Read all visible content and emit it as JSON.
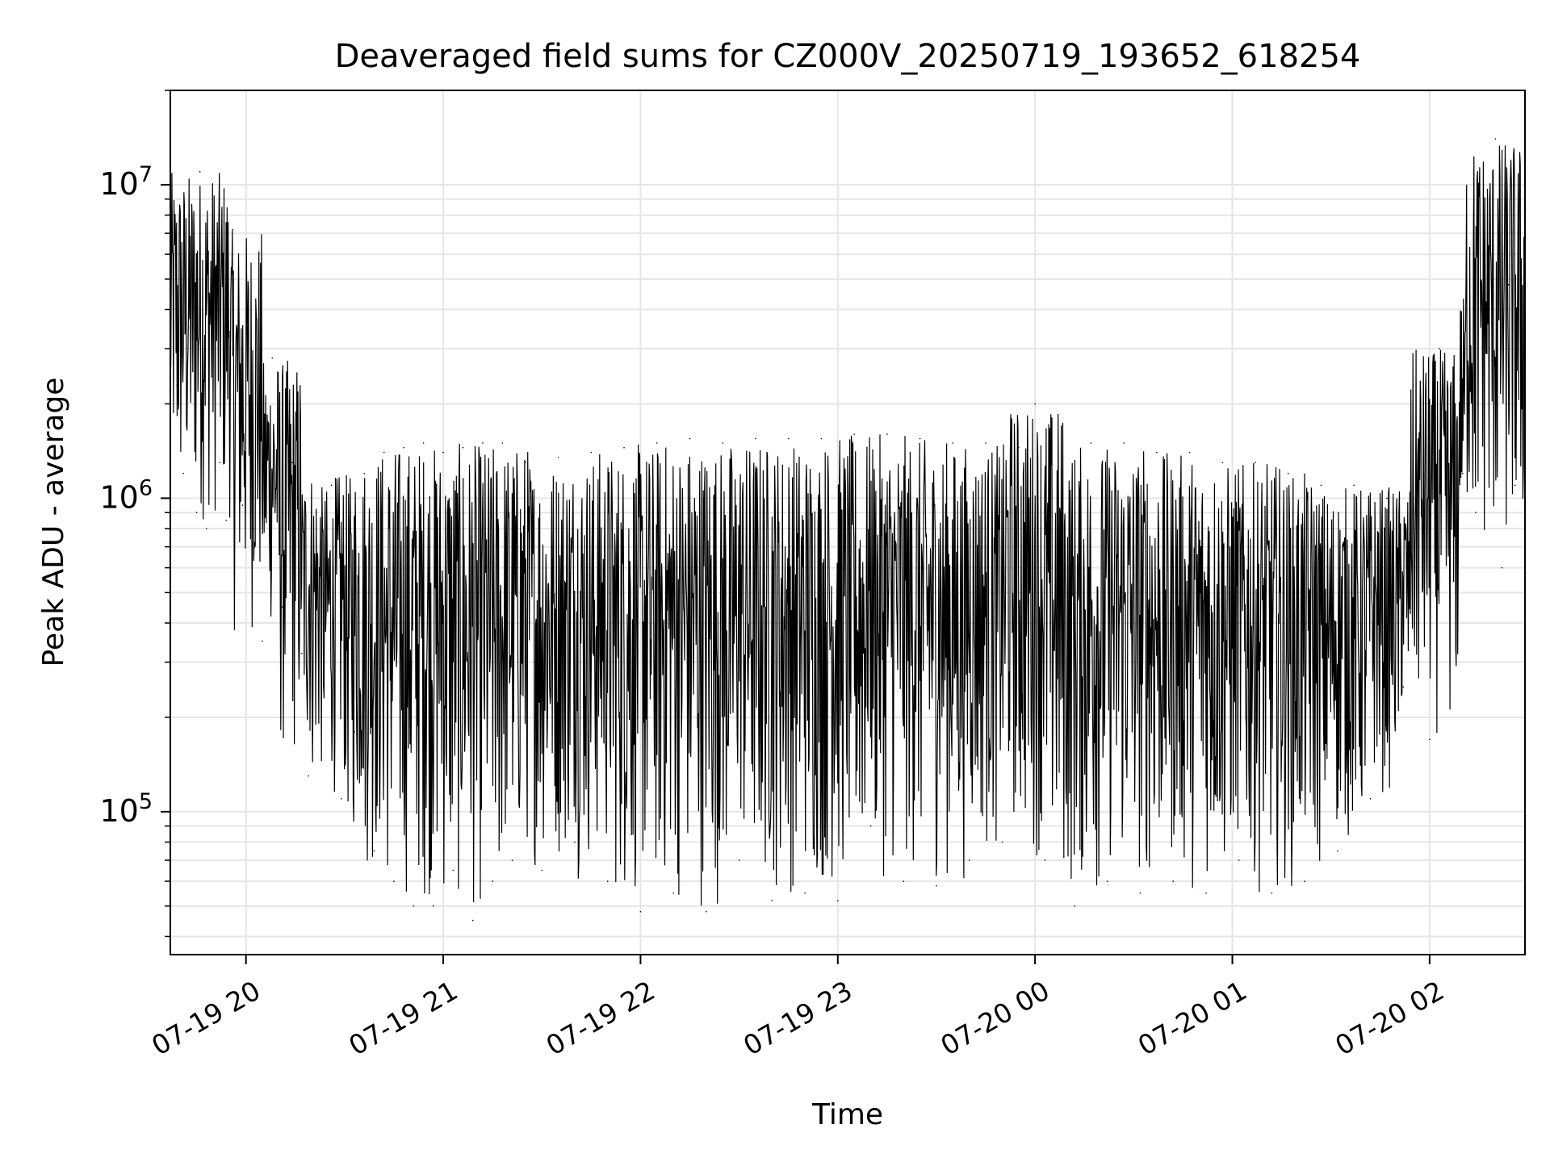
{
  "chart_data": {
    "type": "line",
    "title": "Deaveraged field sums for CZ000V_20250719_193652_618254",
    "xlabel": "Time",
    "ylabel": "Peak ADU - average",
    "y_scale": "log",
    "xlim": [
      "2025-07-19 19:37",
      "2025-07-20 02:29"
    ],
    "ylim": [
      35000,
      20000000
    ],
    "grid": true,
    "line_color": "#000000",
    "grid_color": "#e6e6e6",
    "x_ticks": [
      {
        "t": "2025-07-19 20:00",
        "label": "07-19 20"
      },
      {
        "t": "2025-07-19 21:00",
        "label": "07-19 21"
      },
      {
        "t": "2025-07-19 22:00",
        "label": "07-19 22"
      },
      {
        "t": "2025-07-19 23:00",
        "label": "07-19 23"
      },
      {
        "t": "2025-07-20 00:00",
        "label": "07-20 00"
      },
      {
        "t": "2025-07-20 01:00",
        "label": "07-20 01"
      },
      {
        "t": "2025-07-20 02:00",
        "label": "07-20 02"
      }
    ],
    "y_ticks": [
      {
        "value": 100000,
        "base": "10",
        "exp": "5"
      },
      {
        "value": 1000000,
        "base": "10",
        "exp": "6"
      },
      {
        "value": 10000000,
        "base": "10",
        "exp": "7"
      }
    ],
    "series": [
      {
        "points": [
          [
            "2025-07-19 19:37",
            1300000
          ],
          [
            "2025-07-19 19:39",
            2300000
          ],
          [
            "2025-07-19 19:41",
            1200000
          ],
          [
            "2025-07-19 19:43",
            3500000
          ],
          [
            "2025-07-19 19:45",
            900000
          ],
          [
            "2025-07-19 19:46",
            11000000
          ],
          [
            "2025-07-19 19:48",
            800000
          ],
          [
            "2025-07-19 19:52",
            1300000
          ],
          [
            "2025-07-19 19:54",
            850000
          ],
          [
            "2025-07-19 19:56",
            7200000
          ],
          [
            "2025-07-19 19:58",
            1200000
          ],
          [
            "2025-07-19 19:59",
            950000
          ],
          [
            "2025-07-19 20:02",
            800000
          ],
          [
            "2025-07-19 20:05",
            350000
          ],
          [
            "2025-07-19 20:08",
            2800000
          ],
          [
            "2025-07-19 20:11",
            450000
          ],
          [
            "2025-07-19 20:14",
            1300000
          ],
          [
            "2025-07-19 20:17",
            320000
          ],
          [
            "2025-07-19 20:19",
            130000
          ],
          [
            "2025-07-19 20:23",
            200000
          ],
          [
            "2025-07-19 20:26",
            1100000
          ],
          [
            "2025-07-19 20:29",
            110000
          ],
          [
            "2025-07-19 20:33",
            180000
          ],
          [
            "2025-07-19 20:36",
            1200000
          ],
          [
            "2025-07-19 20:39",
            75000
          ],
          [
            "2025-07-19 20:42",
            1400000
          ],
          [
            "2025-07-19 20:45",
            60000
          ],
          [
            "2025-07-19 20:48",
            1450000
          ],
          [
            "2025-07-19 20:51",
            50000
          ],
          [
            "2025-07-19 20:54",
            1500000
          ],
          [
            "2025-07-19 20:57",
            50000
          ],
          [
            "2025-07-19 21:00",
            1400000
          ],
          [
            "2025-07-19 21:03",
            65000
          ],
          [
            "2025-07-19 21:06",
            1450000
          ],
          [
            "2025-07-19 21:09",
            45000
          ],
          [
            "2025-07-19 21:12",
            1500000
          ],
          [
            "2025-07-19 21:15",
            60000
          ],
          [
            "2025-07-19 21:18",
            1500000
          ],
          [
            "2025-07-19 21:21",
            70000
          ],
          [
            "2025-07-19 21:25",
            1300000
          ],
          [
            "2025-07-19 21:30",
            65000
          ],
          [
            "2025-07-19 21:35",
            1350000
          ],
          [
            "2025-07-19 21:40",
            80000
          ],
          [
            "2025-07-19 21:45",
            1400000
          ],
          [
            "2025-07-19 21:50",
            60000
          ],
          [
            "2025-07-19 21:55",
            1450000
          ],
          [
            "2025-07-19 22:00",
            48000
          ],
          [
            "2025-07-19 22:05",
            1500000
          ],
          [
            "2025-07-19 22:10",
            55000
          ],
          [
            "2025-07-19 22:15",
            1550000
          ],
          [
            "2025-07-19 22:20",
            48000
          ],
          [
            "2025-07-19 22:25",
            1500000
          ],
          [
            "2025-07-19 22:30",
            70000
          ],
          [
            "2025-07-19 22:35",
            1550000
          ],
          [
            "2025-07-19 22:40",
            52000
          ],
          [
            "2025-07-19 22:45",
            1550000
          ],
          [
            "2025-07-19 22:50",
            55000
          ],
          [
            "2025-07-19 22:55",
            1550000
          ],
          [
            "2025-07-19 23:00",
            52000
          ],
          [
            "2025-07-19 23:05",
            1600000
          ],
          [
            "2025-07-19 23:10",
            90000
          ],
          [
            "2025-07-19 23:15",
            1600000
          ],
          [
            "2025-07-19 23:20",
            60000
          ],
          [
            "2025-07-19 23:25",
            1550000
          ],
          [
            "2025-07-19 23:30",
            58000
          ],
          [
            "2025-07-19 23:35",
            1500000
          ],
          [
            "2025-07-19 23:40",
            70000
          ],
          [
            "2025-07-19 23:45",
            1500000
          ],
          [
            "2025-07-19 23:50",
            80000
          ],
          [
            "2025-07-19 23:55",
            1450000
          ],
          [
            "2025-07-20 00:00",
            2000000
          ],
          [
            "2025-07-20 00:03",
            70000
          ],
          [
            "2025-07-20 00:07",
            1500000
          ],
          [
            "2025-07-20 00:12",
            50000
          ],
          [
            "2025-07-20 00:17",
            1500000
          ],
          [
            "2025-07-20 00:22",
            60000
          ],
          [
            "2025-07-20 00:27",
            1500000
          ],
          [
            "2025-07-20 00:32",
            55000
          ],
          [
            "2025-07-20 00:37",
            1400000
          ],
          [
            "2025-07-20 00:42",
            60000
          ],
          [
            "2025-07-20 00:47",
            1400000
          ],
          [
            "2025-07-20 00:52",
            55000
          ],
          [
            "2025-07-20 00:57",
            1300000
          ],
          [
            "2025-07-20 01:02",
            70000
          ],
          [
            "2025-07-20 01:07",
            1300000
          ],
          [
            "2025-07-20 01:12",
            55000
          ],
          [
            "2025-07-20 01:17",
            1200000
          ],
          [
            "2025-07-20 01:22",
            60000
          ],
          [
            "2025-07-20 01:27",
            1100000
          ],
          [
            "2025-07-20 01:32",
            75000
          ],
          [
            "2025-07-20 01:37",
            1100000
          ],
          [
            "2025-07-20 01:42",
            110000
          ],
          [
            "2025-07-20 01:47",
            1000000
          ],
          [
            "2025-07-20 01:52",
            250000
          ],
          [
            "2025-07-20 01:56",
            1100000
          ],
          [
            "2025-07-20 02:00",
            170000
          ],
          [
            "2025-07-20 02:03",
            3000000
          ],
          [
            "2025-07-20 02:06",
            700000
          ],
          [
            "2025-07-20 02:10",
            1200000
          ],
          [
            "2025-07-20 02:14",
            900000
          ],
          [
            "2025-07-20 02:18",
            4500000
          ],
          [
            "2025-07-20 02:20",
            14000000
          ],
          [
            "2025-07-20 02:22",
            600000
          ],
          [
            "2025-07-20 02:24",
            4800000
          ],
          [
            "2025-07-20 02:26",
            1100000
          ],
          [
            "2025-07-20 02:28",
            2000000
          ],
          [
            "2025-07-20 02:29",
            1300000
          ]
        ]
      }
    ]
  }
}
